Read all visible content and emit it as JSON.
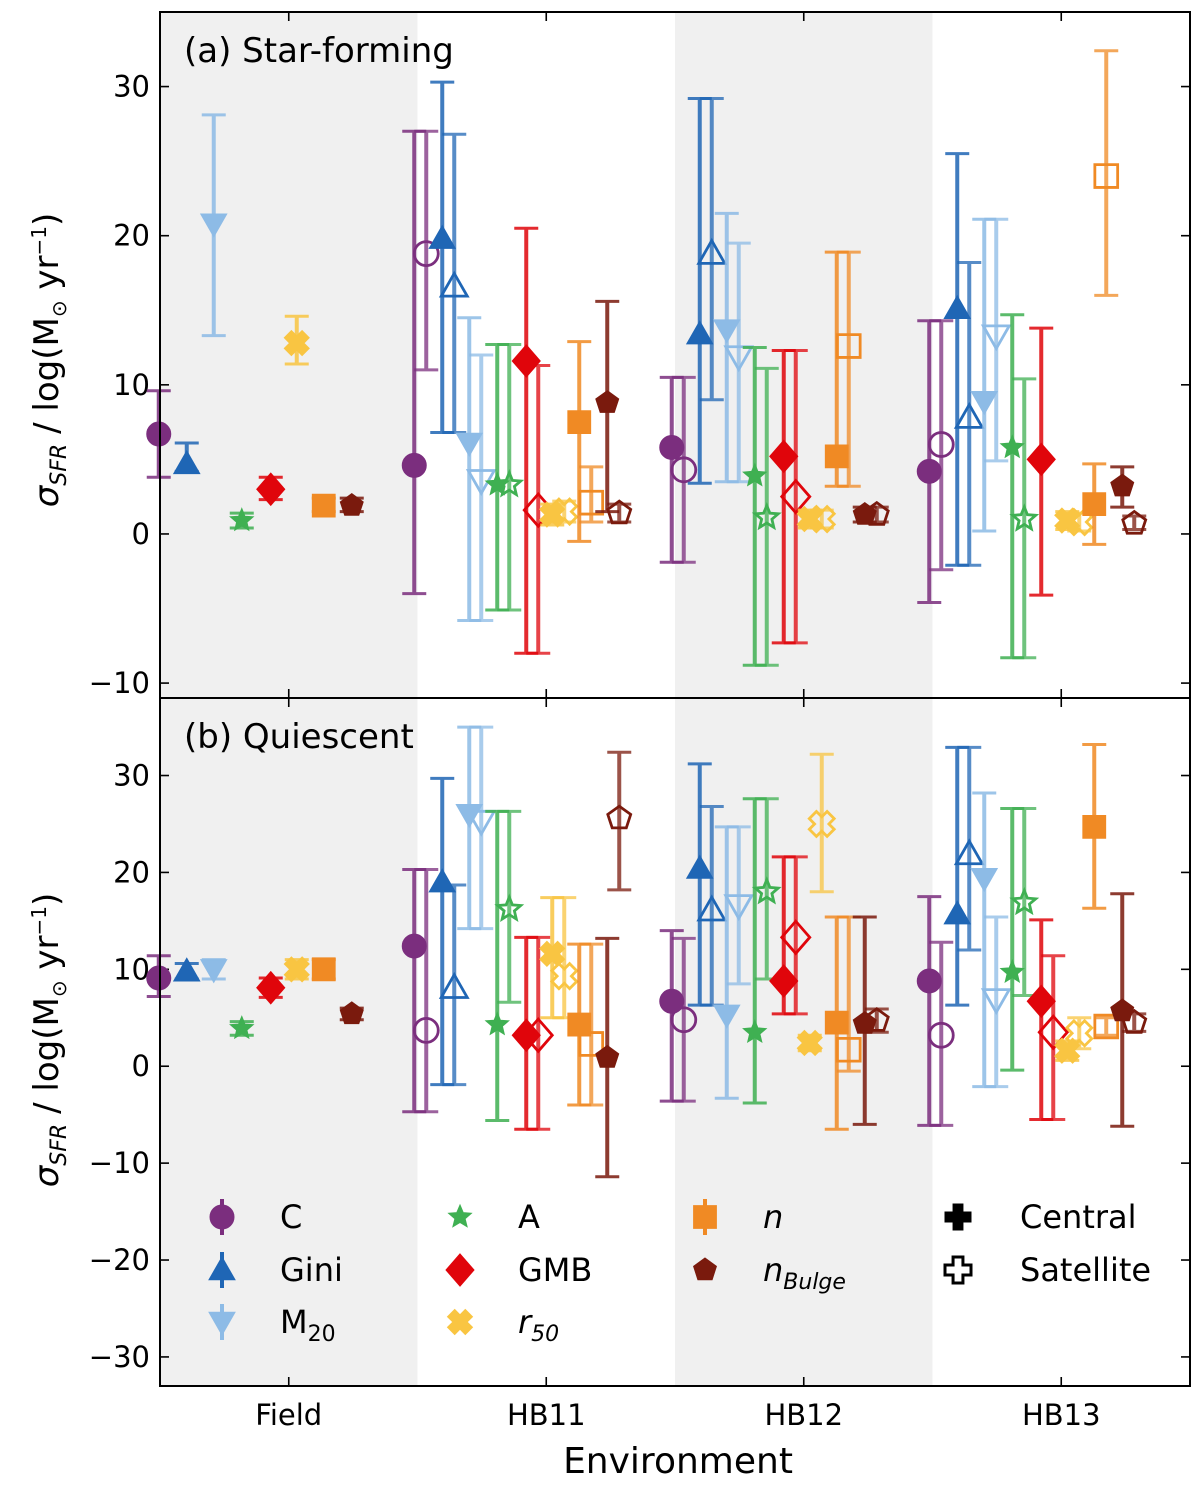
{
  "figure": {
    "xlabel": "Environment",
    "ylabel_main": "σ",
    "ylabel_sub": "SFR",
    "ylabel_unit_pre": "/ log(M",
    "ylabel_unit_sun": "⊙",
    "ylabel_unit_post": " yr",
    "ylabel_unit_exp": "−1",
    "ylabel_unit_close": ")"
  },
  "colors": {
    "C": "#7b2e7e",
    "Gini": "#1f66b5",
    "M20": "#8dbbe6",
    "A": "#3fb052",
    "GMB": "#e0050b",
    "r50": "#f9c542",
    "n": "#f08a24",
    "nBulge": "#7a1a0d",
    "shade": "#f0f0f0"
  },
  "legend": {
    "C": "C",
    "Gini": "Gini",
    "M20_base": "M",
    "M20_sub": "20",
    "A": "A",
    "GMB": "GMB",
    "r50_base": "r",
    "r50_sub": "50",
    "n": "n",
    "nBulge_base": "n",
    "nBulge_sub": "Bulge",
    "central": "Central",
    "satellite": "Satellite"
  },
  "chart_data": [
    {
      "type": "scatter",
      "title": "(a) Star-forming",
      "xlabel": "Environment",
      "ylabel": "σSFR / log(M⊙ yr−1)",
      "categories": [
        "Field",
        "HB11",
        "HB12",
        "HB13"
      ],
      "ylim": [
        -11,
        35
      ],
      "yticks": [
        -10,
        0,
        10,
        20,
        30
      ],
      "shaded_categories": [
        "Field",
        "HB12"
      ],
      "series": [
        {
          "name": "C",
          "central": [
            [
              6.7,
              3.8,
              9.6
            ],
            [
              4.6,
              -4.0,
              27.0
            ],
            [
              5.8,
              -1.9,
              10.5
            ],
            [
              4.2,
              -4.6,
              14.3
            ]
          ],
          "satellite": [
            null,
            [
              18.8,
              11.0,
              27.0
            ],
            [
              4.3,
              -1.9,
              10.5
            ],
            [
              6.0,
              -2.4,
              14.3
            ]
          ]
        },
        {
          "name": "Gini",
          "central": [
            [
              4.7,
              4.2,
              6.1
            ],
            [
              19.8,
              6.8,
              30.3
            ],
            [
              13.4,
              3.4,
              29.2
            ],
            [
              15.1,
              -2.1,
              25.5
            ]
          ],
          "satellite": [
            null,
            [
              16.6,
              6.8,
              26.8
            ],
            [
              18.8,
              9.0,
              29.2
            ],
            [
              7.8,
              -2.1,
              18.2
            ]
          ]
        },
        {
          "name": "M20",
          "central": [
            [
              20.8,
              13.3,
              28.1
            ],
            [
              6.1,
              -5.8,
              14.5
            ],
            [
              13.7,
              3.5,
              21.5
            ],
            [
              8.9,
              0.2,
              21.1
            ]
          ],
          "satellite": [
            null,
            [
              3.6,
              -5.8,
              12.0
            ],
            [
              11.9,
              3.5,
              19.5
            ],
            [
              13.3,
              4.9,
              21.1
            ]
          ]
        },
        {
          "name": "A",
          "central": [
            [
              0.9,
              0.4,
              1.4
            ],
            [
              3.3,
              -5.1,
              12.7
            ],
            [
              3.9,
              -8.8,
              12.5
            ],
            [
              5.8,
              -8.3,
              14.7
            ]
          ],
          "satellite": [
            null,
            [
              3.3,
              -5.1,
              12.7
            ],
            [
              1.1,
              -8.8,
              11.1
            ],
            [
              1.0,
              -8.3,
              10.4
            ]
          ]
        },
        {
          "name": "GMB",
          "central": [
            [
              3.0,
              2.3,
              3.8
            ],
            [
              11.6,
              -8.0,
              20.5
            ],
            [
              5.2,
              -7.3,
              12.3
            ],
            [
              5.0,
              -4.1,
              13.8
            ]
          ],
          "satellite": [
            null,
            [
              1.6,
              -8.0,
              11.3
            ],
            [
              2.5,
              -7.3,
              12.3
            ],
            null
          ]
        },
        {
          "name": "r50",
          "central": [
            [
              12.8,
              11.4,
              14.6
            ],
            [
              1.3,
              0.6,
              2.0
            ],
            [
              1.0,
              0.4,
              1.6
            ],
            [
              0.9,
              0.3,
              1.5
            ]
          ],
          "satellite": [
            null,
            [
              1.5,
              0.8,
              2.2
            ],
            [
              1.0,
              0.4,
              1.6
            ],
            [
              0.8,
              0.2,
              1.4
            ]
          ]
        },
        {
          "name": "n",
          "central": [
            [
              1.9,
              1.5,
              2.4
            ],
            [
              7.5,
              -0.5,
              12.9
            ],
            [
              5.2,
              3.2,
              18.9
            ],
            [
              2.0,
              -0.7,
              4.7
            ]
          ],
          "satellite": [
            null,
            [
              2.1,
              0.8,
              4.5
            ],
            [
              12.6,
              3.2,
              18.9
            ],
            [
              24.0,
              16.0,
              32.4
            ]
          ]
        },
        {
          "name": "nBulge",
          "central": [
            [
              1.9,
              1.5,
              2.4
            ],
            [
              8.8,
              1.5,
              15.6
            ],
            [
              1.3,
              0.8,
              1.8
            ],
            [
              3.2,
              1.8,
              4.5
            ]
          ],
          "satellite": [
            null,
            [
              1.4,
              0.8,
              2.0
            ],
            [
              1.3,
              0.8,
              1.8
            ],
            [
              0.7,
              0.3,
              1.2
            ]
          ]
        }
      ]
    },
    {
      "type": "scatter",
      "title": "(b) Quiescent",
      "xlabel": "Environment",
      "ylabel": "σSFR / log(M⊙ yr−1)",
      "categories": [
        "Field",
        "HB11",
        "HB12",
        "HB13"
      ],
      "ylim": [
        -33,
        38
      ],
      "yticks": [
        -30,
        -20,
        -10,
        0,
        10,
        20,
        30
      ],
      "shaded_categories": [
        "Field",
        "HB12"
      ],
      "series": [
        {
          "name": "C",
          "central": [
            [
              9.1,
              7.2,
              11.4
            ],
            [
              12.4,
              -4.7,
              20.3
            ],
            [
              6.7,
              -3.6,
              14.0
            ],
            [
              8.8,
              -6.1,
              17.5
            ]
          ],
          "satellite": [
            null,
            [
              3.7,
              -4.7,
              20.3
            ],
            [
              4.8,
              -3.6,
              13.2
            ],
            [
              3.2,
              -6.1,
              12.8
            ]
          ]
        },
        {
          "name": "Gini",
          "central": [
            [
              9.8,
              9.0,
              10.6
            ],
            [
              19.0,
              -1.9,
              29.7
            ],
            [
              20.4,
              6.3,
              31.2
            ],
            [
              15.7,
              6.3,
              32.9
            ]
          ],
          "satellite": [
            null,
            [
              8.1,
              -1.9,
              18.7
            ],
            [
              16.1,
              6.3,
              26.8
            ],
            [
              21.9,
              12.0,
              32.9
            ]
          ]
        },
        {
          "name": "M20",
          "central": [
            [
              10.0,
              9.0,
              11.0
            ],
            [
              26.0,
              14.2,
              35.0
            ],
            [
              5.3,
              -3.3,
              24.7
            ],
            [
              19.4,
              -2.1,
              28.2
            ]
          ],
          "satellite": [
            null,
            [
              25.3,
              14.2,
              35.0
            ],
            [
              16.6,
              8.5,
              24.7
            ],
            [
              6.9,
              -2.1,
              15.4
            ]
          ]
        },
        {
          "name": "A",
          "central": [
            [
              3.9,
              3.2,
              4.6
            ],
            [
              4.3,
              -5.6,
              26.3
            ],
            [
              3.5,
              -3.8,
              27.6
            ],
            [
              9.7,
              -0.4,
              26.6
            ]
          ],
          "satellite": [
            null,
            [
              16.2,
              6.6,
              26.3
            ],
            [
              18.0,
              9.0,
              27.6
            ],
            [
              16.9,
              7.3,
              26.6
            ]
          ]
        },
        {
          "name": "GMB",
          "central": [
            [
              8.1,
              7.1,
              9.1
            ],
            [
              3.2,
              -6.5,
              13.3
            ],
            [
              8.8,
              5.4,
              21.6
            ],
            [
              6.7,
              -5.5,
              15.1
            ]
          ],
          "satellite": [
            null,
            [
              3.2,
              -6.5,
              13.3
            ],
            [
              13.3,
              5.4,
              21.6
            ],
            [
              3.5,
              -5.5,
              11.4
            ]
          ]
        },
        {
          "name": "r50",
          "central": [
            [
              10.0,
              9.0,
              11.0
            ],
            [
              11.6,
              5.0,
              17.4
            ],
            [
              2.4,
              1.6,
              3.2
            ],
            [
              1.6,
              0.6,
              2.6
            ]
          ],
          "satellite": [
            null,
            [
              9.3,
              5.0,
              17.4
            ],
            [
              25.0,
              18.0,
              32.2
            ],
            [
              3.4,
              1.8,
              5.0
            ]
          ]
        },
        {
          "name": "n",
          "central": [
            [
              10.0,
              9.0,
              11.0
            ],
            [
              4.3,
              -4.0,
              12.6
            ],
            [
              4.5,
              -6.5,
              15.4
            ],
            [
              24.7,
              16.3,
              33.2
            ]
          ],
          "satellite": [
            null,
            [
              2.3,
              -4.0,
              12.6
            ],
            [
              1.7,
              -0.5,
              15.4
            ],
            [
              4.1,
              3.2,
              5.0
            ]
          ]
        },
        {
          "name": "nBulge",
          "central": [
            [
              5.4,
              4.8,
              6.0
            ],
            [
              0.9,
              -11.4,
              13.2
            ],
            [
              4.4,
              -6.0,
              15.4
            ],
            [
              5.7,
              -6.2,
              17.8
            ]
          ],
          "satellite": [
            null,
            [
              25.6,
              18.2,
              32.4
            ],
            [
              4.7,
              3.5,
              5.9
            ],
            [
              4.5,
              3.6,
              5.4
            ]
          ]
        }
      ]
    }
  ]
}
